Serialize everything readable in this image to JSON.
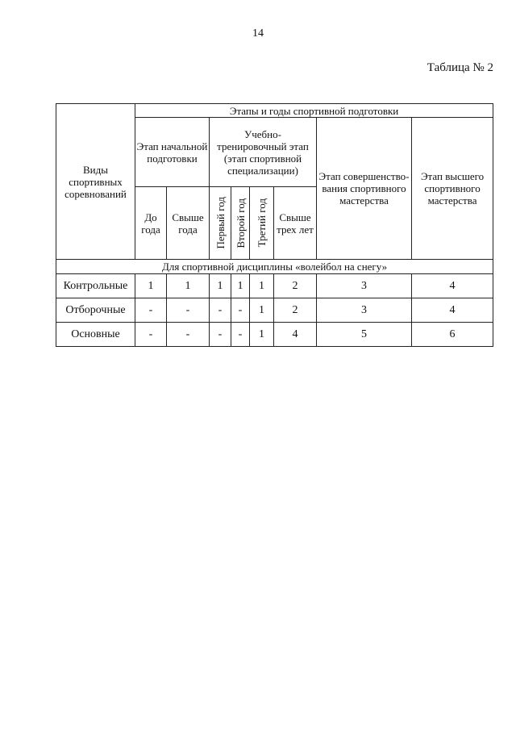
{
  "page_number": "14",
  "table_label": "Таблица № 2",
  "table": {
    "row_header": "Виды спортивных соревнований",
    "group_header": "Этапы и годы спортивной подготовки",
    "stages": {
      "initial": "Этап начальной подготовки",
      "training": "Учебно-тренировочный этап (этап спортивной специализации)",
      "improvement": "Этап совершенство-вания спортивного мастерства",
      "highest": "Этап высшего спортивного мастерства"
    },
    "sub": {
      "up_to_year": "До года",
      "over_year": "Свыше года",
      "first_year": "Первый год",
      "second_year": "Второй год",
      "third_year": "Третий год",
      "over_three": "Свыше трех лет"
    },
    "discipline": "Для спортивной дисциплины «волейбол на снегу»",
    "rows": [
      {
        "name": "Контрольные",
        "values": [
          "1",
          "1",
          "1",
          "1",
          "1",
          "2",
          "3",
          "4"
        ]
      },
      {
        "name": "Отборочные",
        "values": [
          "-",
          "-",
          "-",
          "-",
          "1",
          "2",
          "3",
          "4"
        ]
      },
      {
        "name": "Основные",
        "values": [
          "-",
          "-",
          "-",
          "-",
          "1",
          "4",
          "5",
          "6"
        ]
      }
    ]
  }
}
